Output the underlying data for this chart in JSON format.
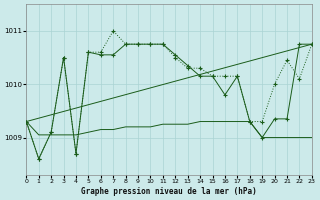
{
  "title": "Graphe pression niveau de la mer (hPa)",
  "bg_color": "#cceaea",
  "grid_color": "#aad4d4",
  "line_color": "#1a5c1a",
  "x_min": 0,
  "x_max": 23,
  "y_min": 1008.3,
  "y_max": 1011.5,
  "yticks": [
    1009,
    1010,
    1011
  ],
  "xticks": [
    0,
    1,
    2,
    3,
    4,
    5,
    6,
    7,
    8,
    9,
    10,
    11,
    12,
    13,
    14,
    15,
    16,
    17,
    18,
    19,
    20,
    21,
    22,
    23
  ],
  "series1_x": [
    0,
    1,
    2,
    3,
    4,
    5,
    6,
    7,
    8,
    9,
    10,
    11,
    12,
    13,
    14,
    15,
    16,
    17,
    18,
    19,
    20,
    21,
    22,
    23
  ],
  "series1_y": [
    1009.3,
    1008.6,
    1009.1,
    1010.5,
    1008.7,
    1010.6,
    1010.6,
    1011.0,
    1010.75,
    1010.75,
    1010.75,
    1010.75,
    1010.5,
    1010.3,
    1010.3,
    1010.15,
    1010.15,
    1010.15,
    1009.3,
    1009.3,
    1010.0,
    1010.45,
    1010.1,
    1010.75
  ],
  "series2_x": [
    0,
    1,
    2,
    3,
    4,
    5,
    6,
    7,
    8,
    9,
    10,
    11,
    12,
    13,
    14,
    15,
    16,
    17,
    18,
    19,
    20,
    21,
    22,
    23
  ],
  "series2_y": [
    1009.3,
    1008.6,
    1009.1,
    1010.5,
    1008.7,
    1010.6,
    1010.55,
    1010.55,
    1010.75,
    1010.75,
    1010.75,
    1010.75,
    1010.55,
    1010.35,
    1010.15,
    1010.15,
    1009.8,
    1010.15,
    1009.3,
    1009.0,
    1009.35,
    1009.35,
    1010.75,
    1010.75
  ],
  "series3_x": [
    0,
    1,
    2,
    3,
    4,
    5,
    6,
    7,
    8,
    9,
    10,
    11,
    12,
    13,
    14,
    15,
    16,
    17,
    18,
    19,
    20,
    21,
    22,
    23
  ],
  "series3_y": [
    1009.3,
    1009.05,
    1009.05,
    1009.05,
    1009.05,
    1009.1,
    1009.15,
    1009.15,
    1009.2,
    1009.2,
    1009.2,
    1009.25,
    1009.25,
    1009.25,
    1009.3,
    1009.3,
    1009.3,
    1009.3,
    1009.3,
    1009.0,
    1009.0,
    1009.0,
    1009.0,
    1009.0
  ],
  "series4_x": [
    0,
    23
  ],
  "series4_y": [
    1009.3,
    1010.75
  ]
}
